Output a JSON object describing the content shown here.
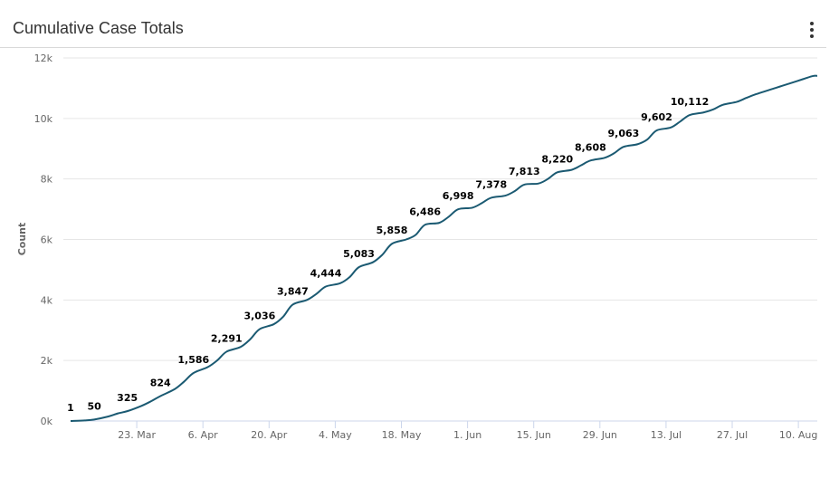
{
  "card": {
    "title": "Cumulative Case Totals",
    "menu_icon": "vertical-ellipsis-icon"
  },
  "colors": {
    "line": "#1b5a72",
    "grid": "#e6e6e6",
    "axis_line": "#ccd6eb"
  },
  "chart_data": {
    "type": "line",
    "title": "Cumulative Case Totals",
    "xlabel": "",
    "ylabel": "Count",
    "x_type": "date",
    "x_range": [
      "2020-03-09",
      "2020-08-14"
    ],
    "ylim": [
      0,
      12000
    ],
    "y_ticks": [
      0,
      2000,
      4000,
      6000,
      8000,
      10000,
      12000
    ],
    "y_tick_labels": [
      "0k",
      "2k",
      "4k",
      "6k",
      "8k",
      "10k",
      "12k"
    ],
    "x_ticks": [
      {
        "date": "2020-03-23",
        "label": "23. Mar"
      },
      {
        "date": "2020-04-06",
        "label": "6. Apr"
      },
      {
        "date": "2020-04-20",
        "label": "20. Apr"
      },
      {
        "date": "2020-05-04",
        "label": "4. May"
      },
      {
        "date": "2020-05-18",
        "label": "18. May"
      },
      {
        "date": "2020-06-01",
        "label": "1. Jun"
      },
      {
        "date": "2020-06-15",
        "label": "15. Jun"
      },
      {
        "date": "2020-06-29",
        "label": "29. Jun"
      },
      {
        "date": "2020-07-13",
        "label": "13. Jul"
      },
      {
        "date": "2020-07-27",
        "label": "27. Jul"
      },
      {
        "date": "2020-08-10",
        "label": "10. Aug"
      }
    ],
    "grid": true,
    "legend": false,
    "series": [
      {
        "points": [
          [
            "2020-03-09",
            1
          ],
          [
            "2020-03-12",
            20
          ],
          [
            "2020-03-14",
            50
          ],
          [
            "2020-03-17",
            150
          ],
          [
            "2020-03-19",
            250
          ],
          [
            "2020-03-21",
            325
          ],
          [
            "2020-03-24",
            500
          ],
          [
            "2020-03-26",
            650
          ],
          [
            "2020-03-28",
            824
          ],
          [
            "2020-03-31",
            1050
          ],
          [
            "2020-04-02",
            1300
          ],
          [
            "2020-04-04",
            1586
          ],
          [
            "2020-04-07",
            1780
          ],
          [
            "2020-04-09",
            2000
          ],
          [
            "2020-04-11",
            2291
          ],
          [
            "2020-04-14",
            2450
          ],
          [
            "2020-04-16",
            2700
          ],
          [
            "2020-04-18",
            3036
          ],
          [
            "2020-04-21",
            3200
          ],
          [
            "2020-04-23",
            3450
          ],
          [
            "2020-04-25",
            3847
          ],
          [
            "2020-04-28",
            4000
          ],
          [
            "2020-04-30",
            4200
          ],
          [
            "2020-05-02",
            4444
          ],
          [
            "2020-05-05",
            4550
          ],
          [
            "2020-05-07",
            4750
          ],
          [
            "2020-05-09",
            5083
          ],
          [
            "2020-05-12",
            5250
          ],
          [
            "2020-05-14",
            5500
          ],
          [
            "2020-05-16",
            5858
          ],
          [
            "2020-05-19",
            6000
          ],
          [
            "2020-05-21",
            6150
          ],
          [
            "2020-05-23",
            6486
          ],
          [
            "2020-05-26",
            6550
          ],
          [
            "2020-05-28",
            6750
          ],
          [
            "2020-05-30",
            6998
          ],
          [
            "2020-06-02",
            7050
          ],
          [
            "2020-06-04",
            7200
          ],
          [
            "2020-06-06",
            7378
          ],
          [
            "2020-06-09",
            7450
          ],
          [
            "2020-06-11",
            7600
          ],
          [
            "2020-06-13",
            7813
          ],
          [
            "2020-06-16",
            7850
          ],
          [
            "2020-06-18",
            8000
          ],
          [
            "2020-06-20",
            8220
          ],
          [
            "2020-06-23",
            8300
          ],
          [
            "2020-06-25",
            8450
          ],
          [
            "2020-06-27",
            8608
          ],
          [
            "2020-06-30",
            8700
          ],
          [
            "2020-07-02",
            8850
          ],
          [
            "2020-07-04",
            9063
          ],
          [
            "2020-07-07",
            9150
          ],
          [
            "2020-07-09",
            9300
          ],
          [
            "2020-07-11",
            9602
          ],
          [
            "2020-07-14",
            9700
          ],
          [
            "2020-07-16",
            9900
          ],
          [
            "2020-07-18",
            10112
          ],
          [
            "2020-07-21",
            10200
          ],
          [
            "2020-07-23",
            10300
          ],
          [
            "2020-07-25",
            10450
          ],
          [
            "2020-07-28",
            10550
          ],
          [
            "2020-07-30",
            10680
          ],
          [
            "2020-08-01",
            10800
          ],
          [
            "2020-08-04",
            10950
          ],
          [
            "2020-08-06",
            11050
          ],
          [
            "2020-08-08",
            11150
          ],
          [
            "2020-08-11",
            11300
          ],
          [
            "2020-08-13",
            11400
          ],
          [
            "2020-08-14",
            11410
          ]
        ]
      }
    ],
    "annotations": [
      {
        "date": "2020-03-09",
        "value": 1,
        "label": "1"
      },
      {
        "date": "2020-03-14",
        "value": 50,
        "label": "50"
      },
      {
        "date": "2020-03-21",
        "value": 325,
        "label": "325"
      },
      {
        "date": "2020-03-28",
        "value": 824,
        "label": "824"
      },
      {
        "date": "2020-04-04",
        "value": 1586,
        "label": "1,586"
      },
      {
        "date": "2020-04-11",
        "value": 2291,
        "label": "2,291"
      },
      {
        "date": "2020-04-18",
        "value": 3036,
        "label": "3,036"
      },
      {
        "date": "2020-04-25",
        "value": 3847,
        "label": "3,847"
      },
      {
        "date": "2020-05-02",
        "value": 4444,
        "label": "4,444"
      },
      {
        "date": "2020-05-09",
        "value": 5083,
        "label": "5,083"
      },
      {
        "date": "2020-05-16",
        "value": 5858,
        "label": "5,858"
      },
      {
        "date": "2020-05-23",
        "value": 6486,
        "label": "6,486"
      },
      {
        "date": "2020-05-30",
        "value": 6998,
        "label": "6,998"
      },
      {
        "date": "2020-06-06",
        "value": 7378,
        "label": "7,378"
      },
      {
        "date": "2020-06-13",
        "value": 7813,
        "label": "7,813"
      },
      {
        "date": "2020-06-20",
        "value": 8220,
        "label": "8,220"
      },
      {
        "date": "2020-06-27",
        "value": 8608,
        "label": "8,608"
      },
      {
        "date": "2020-07-04",
        "value": 9063,
        "label": "9,063"
      },
      {
        "date": "2020-07-11",
        "value": 9602,
        "label": "9,602"
      },
      {
        "date": "2020-07-18",
        "value": 10112,
        "label": "10,112"
      }
    ]
  }
}
